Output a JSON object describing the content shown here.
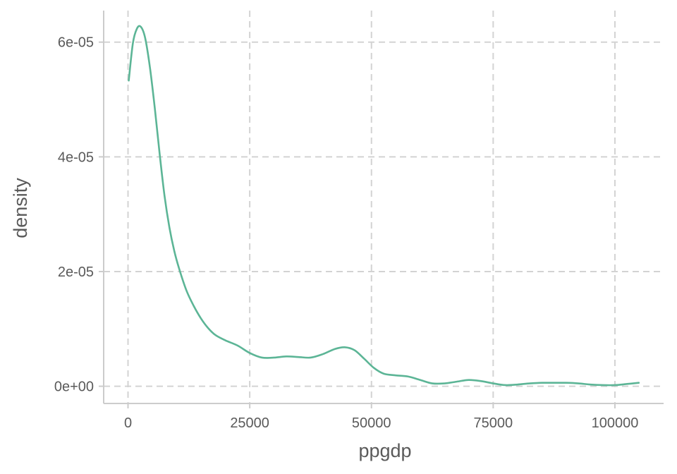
{
  "chart_data": {
    "type": "area",
    "xlabel": "ppgdp",
    "ylabel": "density",
    "xlim": [
      -5000,
      110000
    ],
    "ylim": [
      -3e-06,
      6.55e-05
    ],
    "x_ticks": [
      {
        "value": 0,
        "label": "0"
      },
      {
        "value": 25000,
        "label": "25000"
      },
      {
        "value": 50000,
        "label": "50000"
      },
      {
        "value": 75000,
        "label": "75000"
      },
      {
        "value": 100000,
        "label": "100000"
      }
    ],
    "y_ticks": [
      {
        "value": 0,
        "label": "0e+00"
      },
      {
        "value": 2e-05,
        "label": "2e-05"
      },
      {
        "value": 4e-05,
        "label": "4e-05"
      },
      {
        "value": 6e-05,
        "label": "6e-05"
      }
    ],
    "grid": true,
    "grid_style": "dashed",
    "line_color": "#5cb596",
    "grid_color": "#d3d3d3",
    "axis_color": "#cccccc",
    "series": [
      {
        "x": [
          150,
          1000,
          1800,
          2600,
          3500,
          4500,
          5500,
          6500,
          7500,
          8500,
          9500,
          10500,
          12000,
          13500,
          15000,
          16500,
          18000,
          20000,
          22500,
          25000,
          27500,
          30000,
          32500,
          35000,
          37500,
          40000,
          42500,
          44500,
          46500,
          48500,
          50500,
          52500,
          55000,
          57500,
          60000,
          62500,
          65000,
          67500,
          70000,
          72500,
          75000,
          77500,
          80000,
          82500,
          85000,
          87500,
          90000,
          92500,
          95000,
          97500,
          100000,
          102500,
          104900
        ],
        "y": [
          5.33e-05,
          5.98e-05,
          6.23e-05,
          6.27e-05,
          6.08e-05,
          5.56e-05,
          4.85e-05,
          4.05e-05,
          3.32e-05,
          2.77e-05,
          2.36e-05,
          2.05e-05,
          1.67e-05,
          1.4e-05,
          1.18e-05,
          1.01e-05,
          8.9e-06,
          8e-06,
          7.1e-06,
          5.8e-06,
          5e-06,
          5e-06,
          5.2e-06,
          5.1e-06,
          5e-06,
          5.6e-06,
          6.5e-06,
          6.8e-06,
          6.3e-06,
          4.8e-06,
          3.2e-06,
          2.2e-06,
          1.9e-06,
          1.7e-06,
          1.1e-06,
          5e-07,
          5e-07,
          8e-07,
          1.1e-06,
          9e-07,
          5e-07,
          2e-07,
          3e-07,
          5e-07,
          6e-07,
          6e-07,
          6e-07,
          5e-07,
          3e-07,
          2e-07,
          2e-07,
          4e-07,
          6e-07
        ]
      }
    ]
  }
}
